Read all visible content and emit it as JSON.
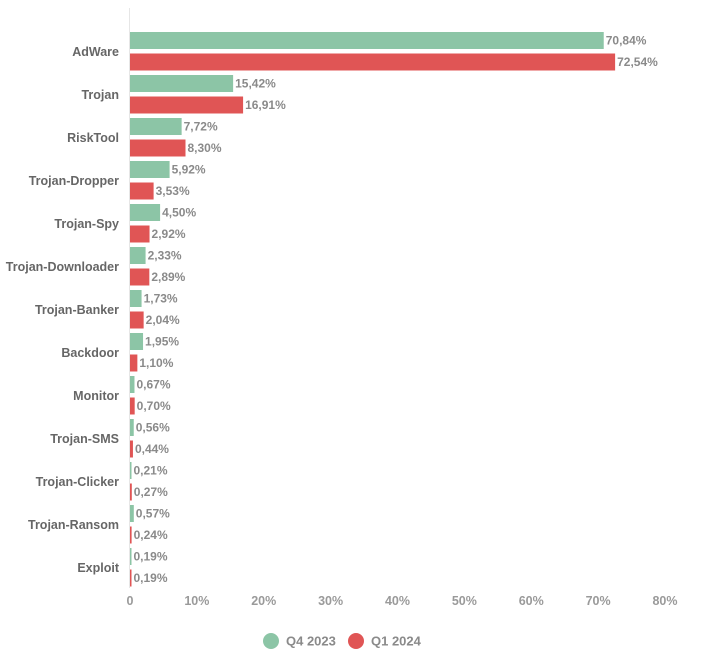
{
  "chart_data": {
    "type": "bar",
    "orientation": "horizontal",
    "categories": [
      "AdWare",
      "Trojan",
      "RiskTool",
      "Trojan-Dropper",
      "Trojan-Spy",
      "Trojan-Downloader",
      "Trojan-Banker",
      "Backdoor",
      "Monitor",
      "Trojan-SMS",
      "Trojan-Clicker",
      "Trojan-Ransom",
      "Exploit"
    ],
    "series": [
      {
        "name": "Q4 2023",
        "color": "#8cc5a6",
        "values": [
          70.84,
          15.42,
          7.72,
          5.92,
          4.5,
          2.33,
          1.73,
          1.95,
          0.67,
          0.56,
          0.21,
          0.57,
          0.19
        ],
        "labels": [
          "70,84%",
          "15,42%",
          "7,72%",
          "5,92%",
          "4,50%",
          "2,33%",
          "1,73%",
          "1,95%",
          "0,67%",
          "0,56%",
          "0,21%",
          "0,57%",
          "0,19%"
        ]
      },
      {
        "name": "Q1 2024",
        "color": "#e05555",
        "values": [
          72.54,
          16.91,
          8.3,
          3.53,
          2.92,
          2.89,
          2.04,
          1.1,
          0.7,
          0.44,
          0.27,
          0.24,
          0.19
        ],
        "labels": [
          "72,54%",
          "16,91%",
          "8,30%",
          "3,53%",
          "2,92%",
          "2,89%",
          "2,04%",
          "1,10%",
          "0,70%",
          "0,44%",
          "0,27%",
          "0,24%",
          "0,19%"
        ]
      }
    ],
    "xlim": [
      0,
      80
    ],
    "xticks": [
      0,
      10,
      20,
      30,
      40,
      50,
      60,
      70,
      80
    ],
    "xtick_labels": [
      "0",
      "10%",
      "20%",
      "30%",
      "40%",
      "50%",
      "60%",
      "70%",
      "80%"
    ],
    "grid": false,
    "legend": "bottom-center",
    "title": "",
    "xlabel": "",
    "ylabel": ""
  }
}
